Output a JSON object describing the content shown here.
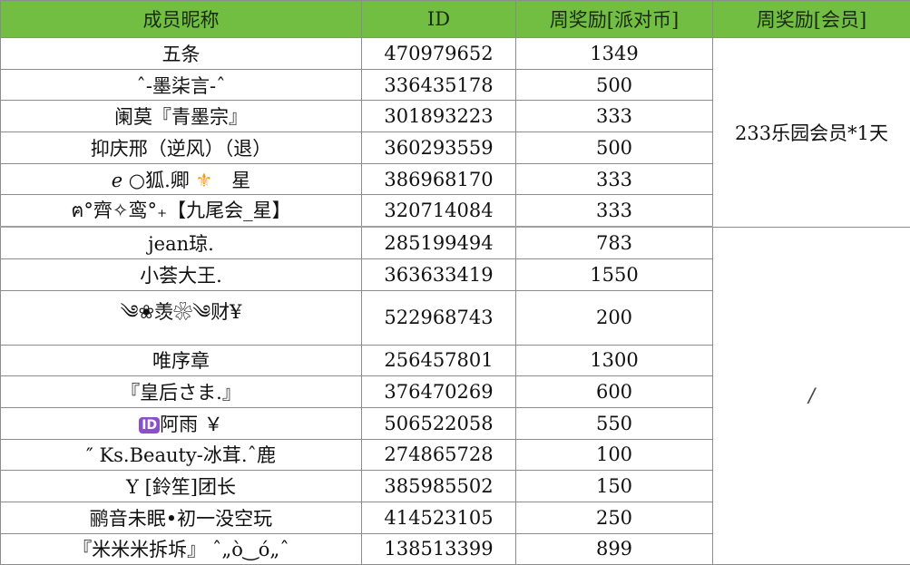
{
  "headers": [
    "成员昵称",
    "ID",
    "周奖励[派对币]",
    "周奖励[会员]"
  ],
  "rows": [
    {
      "name": "五条",
      "id": "470979652",
      "coins": "1349"
    },
    {
      "name": "ˆ-墨柒言-ˆ",
      "id": "336435178",
      "coins": "500"
    },
    {
      "name": "阑莫『青墨宗』",
      "id": "301893223",
      "coins": "333"
    },
    {
      "name": "抑庆邢（逆风）（退）",
      "id": "360293559",
      "coins": "500"
    },
    {
      "name": "ℯ ○狐.卿 ⚜ 星",
      "id": "386968170",
      "coins": "333"
    },
    {
      "name": "ฅ°齊✧鸾°₊【九尾会_星】",
      "id": "320714084",
      "coins": "333"
    },
    {
      "name": "jean琼.",
      "id": "285199494",
      "coins": "783"
    },
    {
      "name": "小荟大王.",
      "id": "363633419",
      "coins": "1550"
    },
    {
      "name": "༄❀羡❀༄财¥",
      "id": "522968743",
      "coins": "200"
    },
    {
      "name": "唯序章",
      "id": "256457801",
      "coins": "1300"
    },
    {
      "name": "『皇后さま.』",
      "id": "376470269",
      "coins": "600"
    },
    {
      "name": "🆔阿雨 ￥",
      "id": "506522058",
      "coins": "550"
    },
    {
      "name": "″ Ks.Beauty-冰茸.ˆ鹿",
      "id": "274865728",
      "coins": "100"
    },
    {
      "name": "Y [鈴笙]团长",
      "id": "385985502",
      "coins": "150"
    },
    {
      "name": "鹂音未眠•初一没空玩",
      "id": "414523105",
      "coins": "250"
    },
    {
      "name": "『米米米拆坼』 ˆ„ò‿ó„ˆ",
      "id": "138513399",
      "coins": "899"
    }
  ],
  "member_rewards": [
    "233乐园会员*1天",
    "/"
  ],
  "colors": {
    "header_bg": "#72be43",
    "grid": "#8c8c8c",
    "fleur": "#f0a020",
    "id_badge": "#8a4fc9"
  }
}
